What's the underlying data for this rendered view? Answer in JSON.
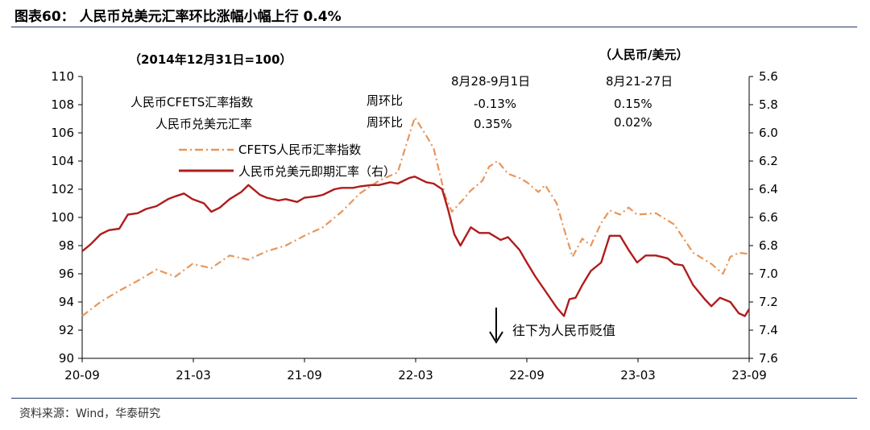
{
  "header": {
    "title": "图表60：  人民币兑美元汇率环比涨幅小幅上行 0.4%"
  },
  "footer": {
    "source": "资料来源：Wind，华泰研究"
  },
  "chart_data": {
    "type": "line",
    "left_axis_note": "（2014年12月31日=100）",
    "right_axis_note": "（人民币/美元）",
    "x_ticks": [
      "20-09",
      "21-03",
      "21-09",
      "22-03",
      "22-09",
      "23-03",
      "23-09"
    ],
    "y_left": {
      "min": 90,
      "max": 110,
      "ticks": [
        90,
        92,
        94,
        96,
        98,
        100,
        102,
        104,
        106,
        108,
        110
      ]
    },
    "y_right": {
      "min": 5.6,
      "max": 7.6,
      "inverted": true,
      "ticks": [
        5.6,
        5.8,
        6.0,
        6.2,
        6.4,
        6.6,
        6.8,
        7.0,
        7.2,
        7.4,
        7.6
      ]
    },
    "table": {
      "col_headers": [
        "8月28-9月1日",
        "8月21-27日"
      ],
      "rows": [
        {
          "label": "人民币CFETS汇率指数",
          "metric": "周环比",
          "values": [
            "-0.13%",
            "0.15%"
          ]
        },
        {
          "label": "人民币兑美元汇率",
          "metric": "周环比",
          "values": [
            "0.35%",
            "0.02%"
          ]
        }
      ]
    },
    "annotation": "往下为人民币贬值",
    "series": [
      {
        "name": "CFETS人民币汇率指数",
        "axis": "left",
        "color": "#e8965a",
        "style": "dashdot",
        "points": [
          [
            "2020-09-01",
            93.0
          ],
          [
            "2020-10-01",
            94.0
          ],
          [
            "2020-11-01",
            94.8
          ],
          [
            "2020-12-01",
            95.5
          ],
          [
            "2021-01-01",
            96.3
          ],
          [
            "2021-02-01",
            95.8
          ],
          [
            "2021-03-01",
            96.7
          ],
          [
            "2021-04-01",
            96.4
          ],
          [
            "2021-05-01",
            97.3
          ],
          [
            "2021-06-01",
            97.0
          ],
          [
            "2021-07-01",
            97.6
          ],
          [
            "2021-08-01",
            98.0
          ],
          [
            "2021-09-01",
            98.7
          ],
          [
            "2021-10-01",
            99.3
          ],
          [
            "2021-11-01",
            100.4
          ],
          [
            "2021-12-01",
            101.7
          ],
          [
            "2022-01-01",
            102.6
          ],
          [
            "2022-02-01",
            103.2
          ],
          [
            "2022-03-01",
            107.1
          ],
          [
            "2022-03-20",
            105.8
          ],
          [
            "2022-04-01",
            104.9
          ],
          [
            "2022-04-20",
            101.5
          ],
          [
            "2022-05-01",
            100.4
          ],
          [
            "2022-05-20",
            101.3
          ],
          [
            "2022-06-01",
            101.9
          ],
          [
            "2022-06-20",
            102.6
          ],
          [
            "2022-07-01",
            103.6
          ],
          [
            "2022-07-15",
            104.0
          ],
          [
            "2022-08-01",
            103.1
          ],
          [
            "2022-08-20",
            102.8
          ],
          [
            "2022-09-01",
            102.5
          ],
          [
            "2022-09-20",
            101.8
          ],
          [
            "2022-10-01",
            102.3
          ],
          [
            "2022-10-20",
            101.0
          ],
          [
            "2022-11-01",
            99.2
          ],
          [
            "2022-11-15",
            97.2
          ],
          [
            "2022-12-01",
            98.5
          ],
          [
            "2022-12-15",
            98.0
          ],
          [
            "2023-01-01",
            99.6
          ],
          [
            "2023-01-15",
            100.5
          ],
          [
            "2023-02-01",
            100.2
          ],
          [
            "2023-02-15",
            100.7
          ],
          [
            "2023-03-01",
            100.2
          ],
          [
            "2023-04-01",
            100.3
          ],
          [
            "2023-05-01",
            99.5
          ],
          [
            "2023-06-01",
            97.5
          ],
          [
            "2023-07-01",
            96.7
          ],
          [
            "2023-07-20",
            96.0
          ],
          [
            "2023-08-01",
            97.2
          ],
          [
            "2023-08-15",
            97.5
          ],
          [
            "2023-09-01",
            97.4
          ]
        ]
      },
      {
        "name": "人民币兑美元即期汇率（右）",
        "axis": "right",
        "color": "#b01c1c",
        "style": "solid",
        "points": [
          [
            "2020-09-01",
            6.84
          ],
          [
            "2020-09-15",
            6.79
          ],
          [
            "2020-10-01",
            6.72
          ],
          [
            "2020-10-15",
            6.69
          ],
          [
            "2020-11-01",
            6.68
          ],
          [
            "2020-11-15",
            6.58
          ],
          [
            "2020-12-01",
            6.57
          ],
          [
            "2020-12-15",
            6.54
          ],
          [
            "2021-01-01",
            6.52
          ],
          [
            "2021-01-20",
            6.47
          ],
          [
            "2021-02-01",
            6.45
          ],
          [
            "2021-02-15",
            6.43
          ],
          [
            "2021-03-01",
            6.47
          ],
          [
            "2021-03-20",
            6.5
          ],
          [
            "2021-04-01",
            6.56
          ],
          [
            "2021-04-15",
            6.53
          ],
          [
            "2021-05-01",
            6.47
          ],
          [
            "2021-05-20",
            6.42
          ],
          [
            "2021-06-01",
            6.37
          ],
          [
            "2021-06-20",
            6.44
          ],
          [
            "2021-07-01",
            6.46
          ],
          [
            "2021-07-20",
            6.48
          ],
          [
            "2021-08-01",
            6.47
          ],
          [
            "2021-08-20",
            6.49
          ],
          [
            "2021-09-01",
            6.46
          ],
          [
            "2021-09-20",
            6.45
          ],
          [
            "2021-10-01",
            6.44
          ],
          [
            "2021-10-20",
            6.4
          ],
          [
            "2021-11-01",
            6.39
          ],
          [
            "2021-11-20",
            6.39
          ],
          [
            "2021-12-01",
            6.38
          ],
          [
            "2021-12-20",
            6.37
          ],
          [
            "2022-01-01",
            6.37
          ],
          [
            "2022-01-20",
            6.35
          ],
          [
            "2022-02-01",
            6.36
          ],
          [
            "2022-02-20",
            6.32
          ],
          [
            "2022-03-01",
            6.31
          ],
          [
            "2022-03-20",
            6.35
          ],
          [
            "2022-04-01",
            6.36
          ],
          [
            "2022-04-15",
            6.4
          ],
          [
            "2022-04-25",
            6.55
          ],
          [
            "2022-05-05",
            6.72
          ],
          [
            "2022-05-15",
            6.8
          ],
          [
            "2022-06-01",
            6.67
          ],
          [
            "2022-06-15",
            6.71
          ],
          [
            "2022-07-01",
            6.71
          ],
          [
            "2022-07-20",
            6.76
          ],
          [
            "2022-08-01",
            6.74
          ],
          [
            "2022-08-20",
            6.83
          ],
          [
            "2022-09-01",
            6.92
          ],
          [
            "2022-09-15",
            7.02
          ],
          [
            "2022-10-01",
            7.12
          ],
          [
            "2022-10-20",
            7.24
          ],
          [
            "2022-11-01",
            7.3
          ],
          [
            "2022-11-10",
            7.18
          ],
          [
            "2022-11-20",
            7.17
          ],
          [
            "2022-12-01",
            7.08
          ],
          [
            "2022-12-15",
            6.98
          ],
          [
            "2023-01-01",
            6.92
          ],
          [
            "2023-01-15",
            6.73
          ],
          [
            "2023-02-01",
            6.73
          ],
          [
            "2023-02-15",
            6.83
          ],
          [
            "2023-03-01",
            6.92
          ],
          [
            "2023-03-15",
            6.87
          ],
          [
            "2023-04-01",
            6.87
          ],
          [
            "2023-04-20",
            6.89
          ],
          [
            "2023-05-01",
            6.93
          ],
          [
            "2023-05-15",
            6.94
          ],
          [
            "2023-06-01",
            7.08
          ],
          [
            "2023-06-20",
            7.18
          ],
          [
            "2023-07-01",
            7.23
          ],
          [
            "2023-07-15",
            7.17
          ],
          [
            "2023-08-01",
            7.2
          ],
          [
            "2023-08-15",
            7.28
          ],
          [
            "2023-08-25",
            7.3
          ],
          [
            "2023-09-01",
            7.25
          ]
        ]
      }
    ]
  }
}
